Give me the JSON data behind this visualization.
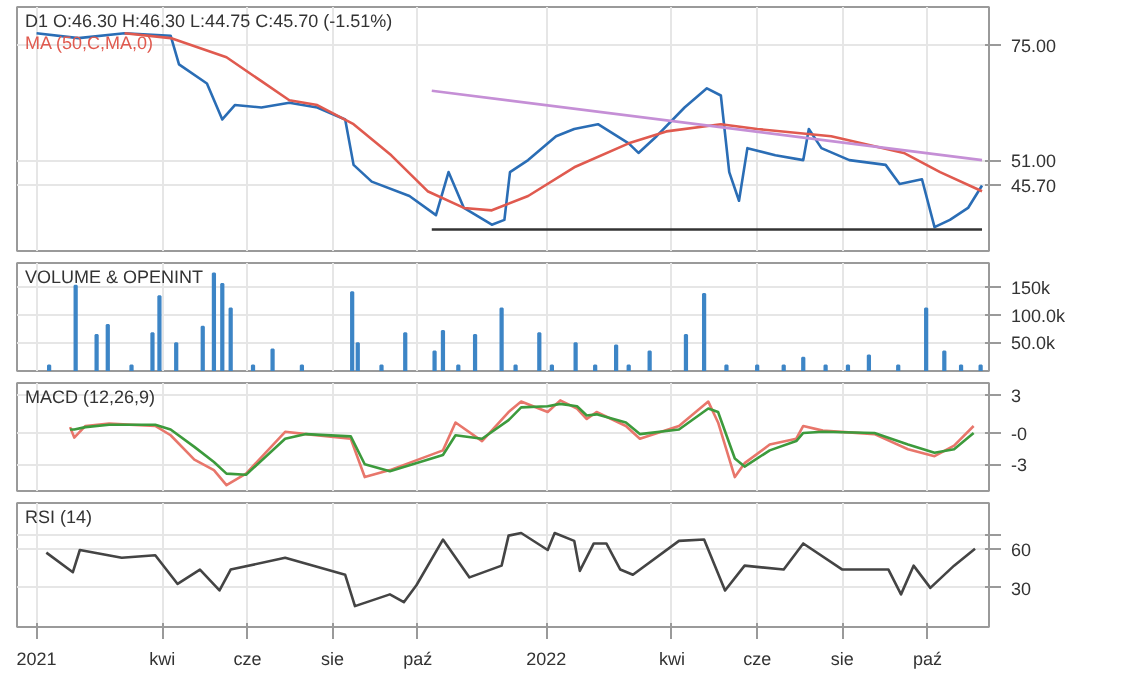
{
  "chart_data": [
    {
      "type": "line",
      "title": "D1 O:46.30 H:46.30 L:44.75 C:45.70 (-1.51%)",
      "xlim": [
        "2020-12-18",
        "2022-11-14"
      ],
      "ylim": [
        32,
        83
      ],
      "yticks": [
        {
          "value": 45.7,
          "label": "45.70"
        },
        {
          "value": 51,
          "label": "51.00"
        },
        {
          "value": 75,
          "label": "75.00"
        }
      ],
      "xticks": [
        {
          "value": "2021-01-01",
          "label": null
        },
        {
          "value": "2021-04-01",
          "label": null
        },
        {
          "value": "2021-06-01",
          "label": null
        },
        {
          "value": "2021-08-01",
          "label": null
        },
        {
          "value": "2021-10-01",
          "label": null
        },
        {
          "value": "2022-01-01",
          "label": null
        },
        {
          "value": "2022-04-01",
          "label": null
        },
        {
          "value": "2022-06-01",
          "label": null
        },
        {
          "value": "2022-08-01",
          "label": null
        },
        {
          "value": "2022-10-01",
          "label": null
        }
      ],
      "tick_labels": "y",
      "grid": true,
      "series": [
        {
          "color": "#2a6db5",
          "x": [
            "2021-01-01",
            "2021-01-31",
            "2021-03-05",
            "2021-04-07",
            "2021-04-13",
            "2021-05-03",
            "2021-05-14",
            "2021-05-23",
            "2021-06-11",
            "2021-07-01",
            "2021-07-21",
            "2021-08-10",
            "2021-08-16",
            "2021-08-29",
            "2021-09-25",
            "2021-10-14",
            "2021-10-23",
            "2021-11-03",
            "2021-11-23",
            "2021-12-02",
            "2021-12-06",
            "2021-12-19",
            "2022-01-08",
            "2022-01-21",
            "2022-02-07",
            "2022-03-01",
            "2022-03-08",
            "2022-03-21",
            "2022-04-10",
            "2022-04-26",
            "2022-05-06",
            "2022-05-12",
            "2022-05-19",
            "2022-05-25",
            "2022-06-14",
            "2022-07-04",
            "2022-07-08",
            "2022-07-17",
            "2022-08-06",
            "2022-09-01",
            "2022-09-11",
            "2022-09-27",
            "2022-10-06",
            "2022-10-17",
            "2022-10-30",
            "2022-11-09"
          ],
          "values": [
            77.5,
            76.5,
            77.5,
            77,
            71,
            67,
            59.5,
            62.5,
            62,
            63,
            62,
            59.5,
            50,
            46.5,
            43.5,
            39.5,
            48.5,
            41,
            37.5,
            38.5,
            48.5,
            51,
            56,
            57.5,
            58.5,
            54.5,
            52.5,
            56,
            62,
            66,
            64.5,
            48.5,
            42.5,
            53.5,
            52,
            51,
            57.5,
            53.5,
            51,
            50,
            46,
            47,
            37,
            38.5,
            41,
            45.7
          ]
        },
        {
          "name": "MA (50,C,MA,0)",
          "color": "#e05a4f",
          "x": [
            "2021-03-05",
            "2021-04-07",
            "2021-05-17",
            "2021-06-11",
            "2021-07-01",
            "2021-07-21",
            "2021-08-16",
            "2021-09-12",
            "2021-10-08",
            "2021-11-03",
            "2021-11-23",
            "2021-12-19",
            "2022-01-21",
            "2022-03-01",
            "2022-03-28",
            "2022-05-06",
            "2022-06-01",
            "2022-07-24",
            "2022-09-14",
            "2022-10-10",
            "2022-11-09"
          ],
          "values": [
            77.5,
            76.5,
            72.5,
            67.5,
            63.5,
            62.5,
            58.5,
            52,
            44.5,
            41,
            40.5,
            43.5,
            49.5,
            54.5,
            57,
            58.5,
            57.5,
            56,
            52.5,
            48.5,
            44.5
          ]
        },
        {
          "color": "#c58fd6",
          "x": [
            "2021-10-11",
            "2022-11-09"
          ],
          "values": [
            65.5,
            51.0
          ]
        },
        {
          "color": "#333333",
          "x": [
            "2021-10-11",
            "2022-11-09"
          ],
          "values": [
            36.5,
            36.5
          ]
        }
      ]
    },
    {
      "type": "bar",
      "title": "VOLUME & OPENINT",
      "xlim": [
        "2020-12-18",
        "2022-11-14"
      ],
      "ylim": [
        0,
        195000
      ],
      "yticks": [
        {
          "value": 50000,
          "label": "50.0k"
        },
        {
          "value": 100000,
          "label": "100.0k"
        },
        {
          "value": 150000,
          "label": "150k"
        }
      ],
      "xticks": [
        {
          "value": "2021-01-01",
          "label": null
        },
        {
          "value": "2021-04-01",
          "label": null
        },
        {
          "value": "2021-06-01",
          "label": null
        },
        {
          "value": "2021-08-01",
          "label": null
        },
        {
          "value": "2021-10-01",
          "label": null
        },
        {
          "value": "2022-01-01",
          "label": null
        },
        {
          "value": "2022-04-01",
          "label": null
        },
        {
          "value": "2022-06-01",
          "label": null
        },
        {
          "value": "2022-08-01",
          "label": null
        },
        {
          "value": "2022-10-01",
          "label": null
        }
      ],
      "tick_labels": "y",
      "grid": true,
      "series": [
        {
          "color": "#3d85c6",
          "x": [
            "2021-01-10",
            "2021-01-29",
            "2021-02-13",
            "2021-02-21",
            "2021-03-10",
            "2021-03-25",
            "2021-03-30",
            "2021-04-11",
            "2021-04-30",
            "2021-05-08",
            "2021-05-14",
            "2021-05-20",
            "2021-06-05",
            "2021-06-19",
            "2021-07-10",
            "2021-08-15",
            "2021-08-19",
            "2021-09-05",
            "2021-09-22",
            "2021-10-13",
            "2021-10-19",
            "2021-10-30",
            "2021-11-11",
            "2021-11-30",
            "2021-12-10",
            "2021-12-27",
            "2022-01-05",
            "2022-01-22",
            "2022-02-05",
            "2022-02-20",
            "2022-03-01",
            "2022-03-16",
            "2022-04-11",
            "2022-04-24",
            "2022-05-10",
            "2022-06-01",
            "2022-06-20",
            "2022-07-04",
            "2022-07-20",
            "2022-08-05",
            "2022-08-20",
            "2022-09-10",
            "2022-09-30",
            "2022-10-13",
            "2022-10-25",
            "2022-11-08"
          ],
          "values": [
            10000,
            154000,
            65000,
            83000,
            10000,
            68000,
            135000,
            50000,
            80000,
            176000,
            157000,
            113000,
            10000,
            39000,
            10000,
            142000,
            50000,
            10000,
            68000,
            35000,
            72000,
            10000,
            65000,
            113000,
            10000,
            68000,
            10000,
            50000,
            10000,
            46000,
            10000,
            35000,
            65000,
            139000,
            10000,
            10000,
            10000,
            24000,
            10000,
            10000,
            28000,
            10000,
            113000,
            35000,
            10000,
            10000
          ]
        }
      ]
    },
    {
      "type": "line",
      "title": "MACD (12,26,9)",
      "xlim": [
        "2020-12-18",
        "2022-11-14"
      ],
      "ylim": [
        -5.3,
        4
      ],
      "yticks": [
        3,
        {
          "value": -0.3,
          "label": "-0"
        },
        -3
      ],
      "xticks": [
        {
          "value": "2021-01-01",
          "label": null
        },
        {
          "value": "2021-04-01",
          "label": null
        },
        {
          "value": "2021-06-01",
          "label": null
        },
        {
          "value": "2021-08-01",
          "label": null
        },
        {
          "value": "2021-10-01",
          "label": null
        },
        {
          "value": "2022-01-01",
          "label": null
        },
        {
          "value": "2022-04-01",
          "label": null
        },
        {
          "value": "2022-06-01",
          "label": null
        },
        {
          "value": "2022-08-01",
          "label": null
        },
        {
          "value": "2022-10-01",
          "label": null
        }
      ],
      "tick_labels": "y",
      "grid": true,
      "series": [
        {
          "color": "#e8766b",
          "x": [
            "2021-01-25",
            "2021-01-28",
            "2021-02-05",
            "2021-02-22",
            "2021-03-27",
            "2021-04-07",
            "2021-04-24",
            "2021-05-08",
            "2021-05-17",
            "2021-05-31",
            "2021-06-28",
            "2021-07-13",
            "2021-08-14",
            "2021-08-24",
            "2021-09-11",
            "2021-10-19",
            "2021-10-28",
            "2021-11-16",
            "2021-12-05",
            "2021-12-14",
            "2022-01-02",
            "2022-01-11",
            "2022-01-23",
            "2022-01-30",
            "2022-02-06",
            "2022-02-27",
            "2022-03-09",
            "2022-04-06",
            "2022-04-27",
            "2022-05-04",
            "2022-05-16",
            "2022-05-23",
            "2022-06-10",
            "2022-06-29",
            "2022-07-04",
            "2022-07-18",
            "2022-08-24",
            "2022-09-17",
            "2022-10-06",
            "2022-10-20",
            "2022-11-03"
          ],
          "values": [
            0.2,
            -0.7,
            0.3,
            0.5,
            0.3,
            -0.5,
            -2.6,
            -3.5,
            -4.8,
            -3.8,
            -0.2,
            -0.4,
            -0.8,
            -4.1,
            -3.5,
            -1.8,
            0.6,
            -1.0,
            1.5,
            2.4,
            1.5,
            2.5,
            1.8,
            0.9,
            1.5,
            0.3,
            -0.8,
            0.3,
            2.4,
            0.6,
            -4.1,
            -2.9,
            -1.3,
            -0.8,
            0.3,
            -0.1,
            -0.4,
            -1.7,
            -2.3,
            -1.4,
            0.3
          ]
        },
        {
          "color": "#3c9a3c",
          "x": [
            "2021-01-25",
            "2021-01-28",
            "2021-02-05",
            "2021-02-22",
            "2021-03-27",
            "2021-04-07",
            "2021-04-24",
            "2021-05-08",
            "2021-05-17",
            "2021-05-31",
            "2021-06-28",
            "2021-07-13",
            "2021-08-14",
            "2021-08-24",
            "2021-09-11",
            "2021-10-19",
            "2021-10-28",
            "2021-11-16",
            "2021-12-05",
            "2021-12-14",
            "2022-01-02",
            "2022-01-11",
            "2022-01-23",
            "2022-01-30",
            "2022-02-06",
            "2022-02-27",
            "2022-03-09",
            "2022-04-06",
            "2022-04-27",
            "2022-05-04",
            "2022-05-16",
            "2022-05-23",
            "2022-06-10",
            "2022-06-29",
            "2022-07-04",
            "2022-07-18",
            "2022-08-24",
            "2022-09-17",
            "2022-10-06",
            "2022-10-20",
            "2022-11-03"
          ],
          "values": [
            0.0,
            0.0,
            0.2,
            0.4,
            0.4,
            0.0,
            -1.5,
            -2.8,
            -3.8,
            -3.9,
            -0.8,
            -0.4,
            -0.6,
            -3.0,
            -3.6,
            -2.2,
            -0.5,
            -0.8,
            0.8,
            1.9,
            2.0,
            2.2,
            2.0,
            1.2,
            1.3,
            0.6,
            -0.4,
            0.0,
            1.8,
            1.5,
            -2.5,
            -3.2,
            -1.8,
            -1.0,
            -0.3,
            -0.2,
            -0.3,
            -1.3,
            -2.0,
            -1.7,
            -0.3
          ]
        }
      ]
    },
    {
      "type": "line",
      "title": "RSI (14)",
      "xlim": [
        "2020-12-18",
        "2022-11-14"
      ],
      "ylim": [
        0,
        95
      ],
      "yticks": [
        {
          "value": 70,
          "label": null
        },
        {
          "value": 60,
          "label": "60"
        },
        30
      ],
      "xticks": [
        {
          "value": "2021-01-01",
          "label": "2021"
        },
        {
          "value": "2021-04-01",
          "label": "kwi"
        },
        {
          "value": "2021-06-01",
          "label": "cze"
        },
        {
          "value": "2021-08-01",
          "label": "sie"
        },
        {
          "value": "2021-10-01",
          "label": "paź"
        },
        {
          "value": "2022-01-01",
          "label": "2022"
        },
        {
          "value": "2022-04-01",
          "label": "kwi"
        },
        {
          "value": "2022-06-01",
          "label": "cze"
        },
        {
          "value": "2022-08-01",
          "label": "sie"
        },
        {
          "value": "2022-10-01",
          "label": "paź"
        }
      ],
      "grid": true,
      "series": [
        {
          "color": "#444444",
          "x": [
            "2021-01-08",
            "2021-01-27",
            "2021-02-01",
            "2021-03-03",
            "2021-03-27",
            "2021-04-12",
            "2021-04-28",
            "2021-05-12",
            "2021-05-20",
            "2021-06-28",
            "2021-08-10",
            "2021-08-17",
            "2021-09-11",
            "2021-09-21",
            "2021-09-30",
            "2021-10-19",
            "2021-11-07",
            "2021-11-30",
            "2021-12-05",
            "2021-12-14",
            "2022-01-02",
            "2022-01-07",
            "2022-01-21",
            "2022-01-25",
            "2022-02-04",
            "2022-02-13",
            "2022-02-23",
            "2022-03-04",
            "2022-04-06",
            "2022-04-24",
            "2022-05-09",
            "2022-05-23",
            "2022-06-20",
            "2022-07-04",
            "2022-08-01",
            "2022-09-03",
            "2022-09-12",
            "2022-09-21",
            "2022-10-03",
            "2022-10-20",
            "2022-11-04"
          ],
          "values": [
            57,
            42,
            59,
            53,
            55,
            33,
            44,
            28,
            44,
            53,
            40,
            16,
            25,
            19,
            32,
            67,
            38,
            47,
            70,
            72,
            59,
            72,
            66,
            43,
            64,
            64,
            44,
            40,
            66,
            67,
            28,
            47,
            44,
            64,
            44,
            44,
            25,
            47,
            30,
            47,
            60
          ]
        }
      ]
    }
  ]
}
